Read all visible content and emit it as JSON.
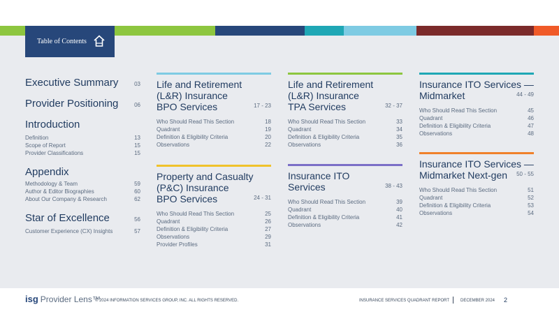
{
  "colors": {
    "bar_segments": [
      "#8dc63f",
      "#27477a",
      "#1fa7b5",
      "#7ecbe3",
      "#7b2a2a",
      "#f05a28"
    ],
    "tab_bg": "#27477a",
    "card_bars": {
      "lr_bpo": "#7ecbe3",
      "lr_tpa": "#8dc63f",
      "ito_midmarket": "#1fa7b5",
      "pc_bpo": "#f0c22a",
      "ito_services": "#7b6fc7",
      "ito_nextgen": "#f0812a"
    }
  },
  "toc_tab": {
    "label": "Table of Contents",
    "icon": "home-icon"
  },
  "left": {
    "exec": {
      "title": "Executive Summary",
      "page": "03"
    },
    "positioning": {
      "title": "Provider Positioning",
      "page": "06"
    },
    "intro": {
      "title": "Introduction",
      "items": [
        {
          "label": "Definition",
          "page": "13"
        },
        {
          "label": "Scope of Report",
          "page": "15"
        },
        {
          "label": "Provider Classifications",
          "page": "15"
        }
      ]
    },
    "appendix": {
      "title": "Appendix",
      "items": [
        {
          "label": "Methodology & Team",
          "page": "59"
        },
        {
          "label": "Author & Editor Biographies",
          "page": "60"
        },
        {
          "label": "About Our Company & Research",
          "page": "62"
        }
      ]
    },
    "star": {
      "title": "Star of Excellence",
      "page": "56",
      "items": [
        {
          "label": "Customer Experience (CX) Insights",
          "page": "57"
        }
      ]
    }
  },
  "cards": {
    "lr_bpo": {
      "title_lines": [
        "Life and Retirement",
        "(L&R) Insurance",
        "BPO Services"
      ],
      "pages": "17 - 23",
      "items": [
        {
          "label": "Who Should Read This Section",
          "page": "18"
        },
        {
          "label": "Quadrant",
          "page": "19"
        },
        {
          "label": "Definition & Eligibility Criteria",
          "page": "20"
        },
        {
          "label": "Observations",
          "page": "22"
        }
      ]
    },
    "lr_tpa": {
      "title_lines": [
        "Life and Retirement",
        "(L&R) Insurance",
        "TPA Services"
      ],
      "pages": "32 - 37",
      "items": [
        {
          "label": "Who Should Read This Section",
          "page": "33"
        },
        {
          "label": "Quadrant",
          "page": "34"
        },
        {
          "label": "Definition & Eligibility Criteria",
          "page": "35"
        },
        {
          "label": "Observations",
          "page": "36"
        }
      ]
    },
    "ito_midmarket": {
      "title_lines": [
        "Insurance ITO Services —",
        "Midmarket"
      ],
      "pages": "44 - 49",
      "items": [
        {
          "label": "Who Should Read This Section",
          "page": "45"
        },
        {
          "label": "Quadrant",
          "page": "46"
        },
        {
          "label": "Definition & Eligibility Criteria",
          "page": "47"
        },
        {
          "label": "Observations",
          "page": "48"
        }
      ]
    },
    "pc_bpo": {
      "title_lines": [
        "Property and Casualty",
        "(P&C) Insurance",
        "BPO Services"
      ],
      "pages": "24 - 31",
      "items": [
        {
          "label": "Who Should Read This Section",
          "page": "25"
        },
        {
          "label": "Quadrant",
          "page": "26"
        },
        {
          "label": "Definition & Eligibility Criteria",
          "page": "27"
        },
        {
          "label": "Observations",
          "page": "29"
        },
        {
          "label": "Provider Profiles",
          "page": "31"
        }
      ]
    },
    "ito_services": {
      "title_lines": [
        "Insurance ITO",
        "Services"
      ],
      "pages": "38 - 43",
      "items": [
        {
          "label": "Who Should Read This Section",
          "page": "39"
        },
        {
          "label": "Quadrant",
          "page": "40"
        },
        {
          "label": "Definition & Eligibility Criteria",
          "page": "41"
        },
        {
          "label": "Observations",
          "page": "42"
        }
      ]
    },
    "ito_nextgen": {
      "title_lines": [
        "Insurance ITO Services —",
        "Midmarket Next-gen"
      ],
      "pages": "50 - 55",
      "items": [
        {
          "label": "Who Should Read This Section",
          "page": "51"
        },
        {
          "label": "Quadrant",
          "page": "52"
        },
        {
          "label": "Definition & Eligibility Criteria",
          "page": "53"
        },
        {
          "label": "Observations",
          "page": "54"
        }
      ]
    }
  },
  "footer": {
    "logo_isg": "isg",
    "logo_text": "Provider Lens™",
    "copyright": "© 2024 INFORMATION SERVICES GROUP, INC. ALL RIGHTS RESERVED.",
    "report": "INSURANCE SERVICES QUADRANT REPORT",
    "date": "DECEMBER 2024",
    "page_number": "2"
  }
}
